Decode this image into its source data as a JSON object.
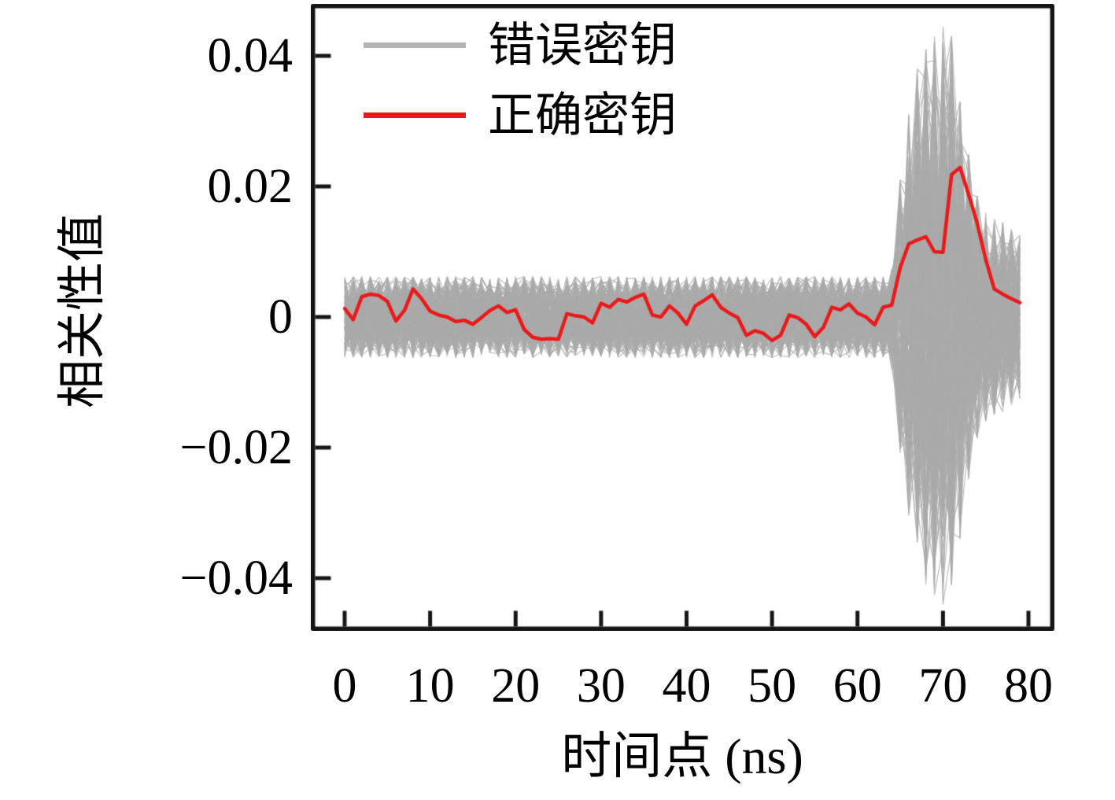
{
  "figure": {
    "background": "#ffffff",
    "axis_color": "#161616",
    "tick_length": 20,
    "tick_width": 5,
    "spine_width": 5.5
  },
  "axes": {
    "xlabel": "时间点 (ns)",
    "ylabel": "相关性值",
    "x_ticks": [
      "0",
      "10",
      "20",
      "30",
      "40",
      "50",
      "60",
      "70",
      "80"
    ],
    "y_ticks": [
      "0.04",
      "0.02",
      "0",
      "−0.02",
      "−0.04"
    ]
  },
  "legend": {
    "items": [
      {
        "label": "错误密钥",
        "color": "#b3b3b3"
      },
      {
        "label": "正确密钥",
        "color": "#ea1a1a"
      }
    ]
  },
  "chart_data": {
    "type": "line",
    "title": "",
    "xlabel": "时间点 (ns)",
    "ylabel": "相关性值",
    "xlim": [
      -4,
      83
    ],
    "ylim": [
      -0.048,
      0.048
    ],
    "x_tick_values": [
      0,
      10,
      20,
      30,
      40,
      50,
      60,
      70,
      80
    ],
    "y_tick_values": [
      0.04,
      0.02,
      0,
      -0.02,
      -0.04
    ],
    "grid": false,
    "legend_position": "upper left",
    "x_step": 1,
    "series": [
      {
        "name": "错误密钥",
        "kind": "ensemble-of-traces",
        "color": "#b3b3b3",
        "line_width": 1.2,
        "n_traces": 200,
        "x_start": 0,
        "envelope_halfwidth": [
          0.0062,
          0.0062,
          0.0062,
          0.0062,
          0.0062,
          0.0062,
          0.0062,
          0.0062,
          0.0062,
          0.0062,
          0.0062,
          0.0062,
          0.0062,
          0.0062,
          0.0062,
          0.0062,
          0.0062,
          0.0062,
          0.0062,
          0.0062,
          0.0062,
          0.0062,
          0.0062,
          0.0062,
          0.0062,
          0.0062,
          0.0062,
          0.0062,
          0.0062,
          0.0062,
          0.0062,
          0.0062,
          0.0062,
          0.0062,
          0.0062,
          0.0062,
          0.0062,
          0.0062,
          0.0062,
          0.0062,
          0.0062,
          0.0062,
          0.0062,
          0.0062,
          0.0062,
          0.0062,
          0.0062,
          0.0062,
          0.0062,
          0.0062,
          0.0062,
          0.0062,
          0.0062,
          0.0062,
          0.0062,
          0.0062,
          0.0062,
          0.0062,
          0.0062,
          0.0062,
          0.0062,
          0.0062,
          0.0062,
          0.0062,
          0.008,
          0.021,
          0.031,
          0.038,
          0.041,
          0.043,
          0.0445,
          0.043,
          0.034,
          0.025,
          0.0185,
          0.016,
          0.015,
          0.0145,
          0.0135,
          0.0125
        ]
      },
      {
        "name": "正确密钥",
        "kind": "single-trace",
        "color": "#ea1a1a",
        "line_width": 4.5,
        "x_start": 0,
        "values": [
          0.0013,
          -0.0004,
          0.0031,
          0.0035,
          0.0033,
          0.0024,
          -0.0006,
          0.001,
          0.0043,
          0.0028,
          0.0009,
          0.0003,
          0.0,
          -0.0007,
          -0.0005,
          -0.0011,
          -0.0001,
          0.001,
          0.0017,
          0.0007,
          0.0011,
          -0.0019,
          -0.0031,
          -0.0034,
          -0.0033,
          -0.0034,
          0.0005,
          0.0002,
          0.0,
          -0.0009,
          0.0021,
          0.0015,
          0.0027,
          0.0023,
          0.003,
          0.0035,
          0.0003,
          0.0,
          0.0017,
          0.0006,
          -0.0011,
          0.0017,
          0.0025,
          0.0034,
          0.0015,
          0.0006,
          -0.0001,
          -0.0028,
          -0.0021,
          -0.0025,
          -0.0036,
          -0.0028,
          0.0003,
          -0.0001,
          -0.0011,
          -0.003,
          -0.0016,
          0.0015,
          0.0011,
          0.002,
          0.0006,
          0.0,
          -0.0012,
          0.0015,
          0.0018,
          0.0076,
          0.0112,
          0.0118,
          0.0123,
          0.01,
          0.0099,
          0.0218,
          0.0229,
          0.0188,
          0.0144,
          0.0088,
          0.0043,
          0.0035,
          0.0028,
          0.0022
        ]
      }
    ]
  }
}
